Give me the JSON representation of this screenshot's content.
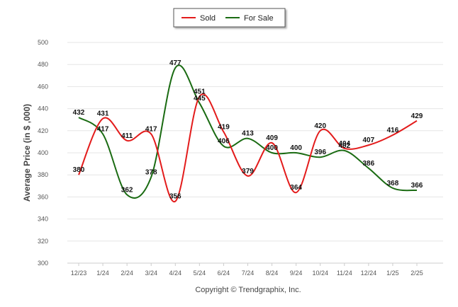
{
  "chart_data": {
    "type": "line",
    "title": "",
    "xlabel": "",
    "ylabel": "Average Price (in $ ,000)",
    "ylim": [
      300,
      500
    ],
    "yticks": [
      300,
      320,
      340,
      360,
      380,
      400,
      420,
      440,
      460,
      480,
      500
    ],
    "grid": true,
    "legend_position": "top-center",
    "categories": [
      "12/23",
      "1/24",
      "2/24",
      "3/24",
      "4/24",
      "5/24",
      "6/24",
      "7/24",
      "8/24",
      "9/24",
      "10/24",
      "11/24",
      "12/24",
      "1/25",
      "2/25"
    ],
    "series": [
      {
        "name": "Sold",
        "color": "#e31b1b",
        "values": [
          380,
          431,
          411,
          417,
          356,
          451,
          419,
          379,
          409,
          364,
          420,
          404,
          407,
          416,
          429
        ]
      },
      {
        "name": "For Sale",
        "color": "#1a6b12",
        "values": [
          432,
          417,
          362,
          378,
          477,
          445,
          406,
          413,
          400,
          400,
          396,
          402,
          386,
          368,
          366
        ]
      }
    ]
  },
  "copyright": "Copyright © Trendgraphix, Inc."
}
